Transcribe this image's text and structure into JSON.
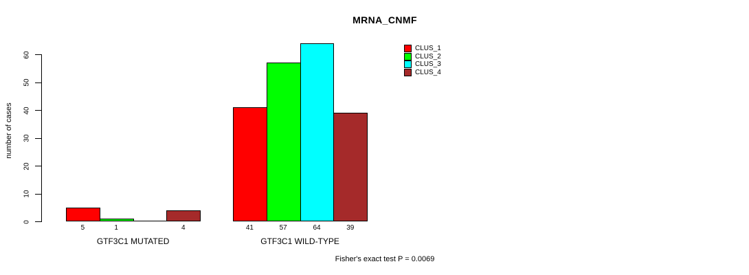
{
  "page": {
    "background": "#FFFFFF",
    "text_color": "#000000"
  },
  "chart_data": {
    "type": "bar",
    "title": "MRNA_CNMF",
    "ylabel": "number of cases",
    "xlabel": "",
    "ylim": [
      0,
      60
    ],
    "yticks": [
      0,
      10,
      20,
      30,
      40,
      50,
      60
    ],
    "grid": false,
    "legend_position": "top-right",
    "categories": [
      "GTF3C1 MUTATED",
      "GTF3C1 WILD-TYPE"
    ],
    "series": [
      {
        "name": "CLUS_1",
        "color": "#FF0000",
        "values": [
          5,
          41
        ]
      },
      {
        "name": "CLUS_2",
        "color": "#00FF00",
        "values": [
          1,
          57
        ]
      },
      {
        "name": "CLUS_3",
        "color": "#00FFFF",
        "values": [
          0,
          64
        ]
      },
      {
        "name": "CLUS_4",
        "color": "#A52A2A",
        "values": [
          4,
          39
        ]
      }
    ],
    "bar_value_labels": [
      [
        "5",
        "1",
        "",
        "4"
      ],
      [
        "41",
        "57",
        "64",
        "39"
      ]
    ],
    "footer": "Fisher's exact test P = 0.0069"
  }
}
